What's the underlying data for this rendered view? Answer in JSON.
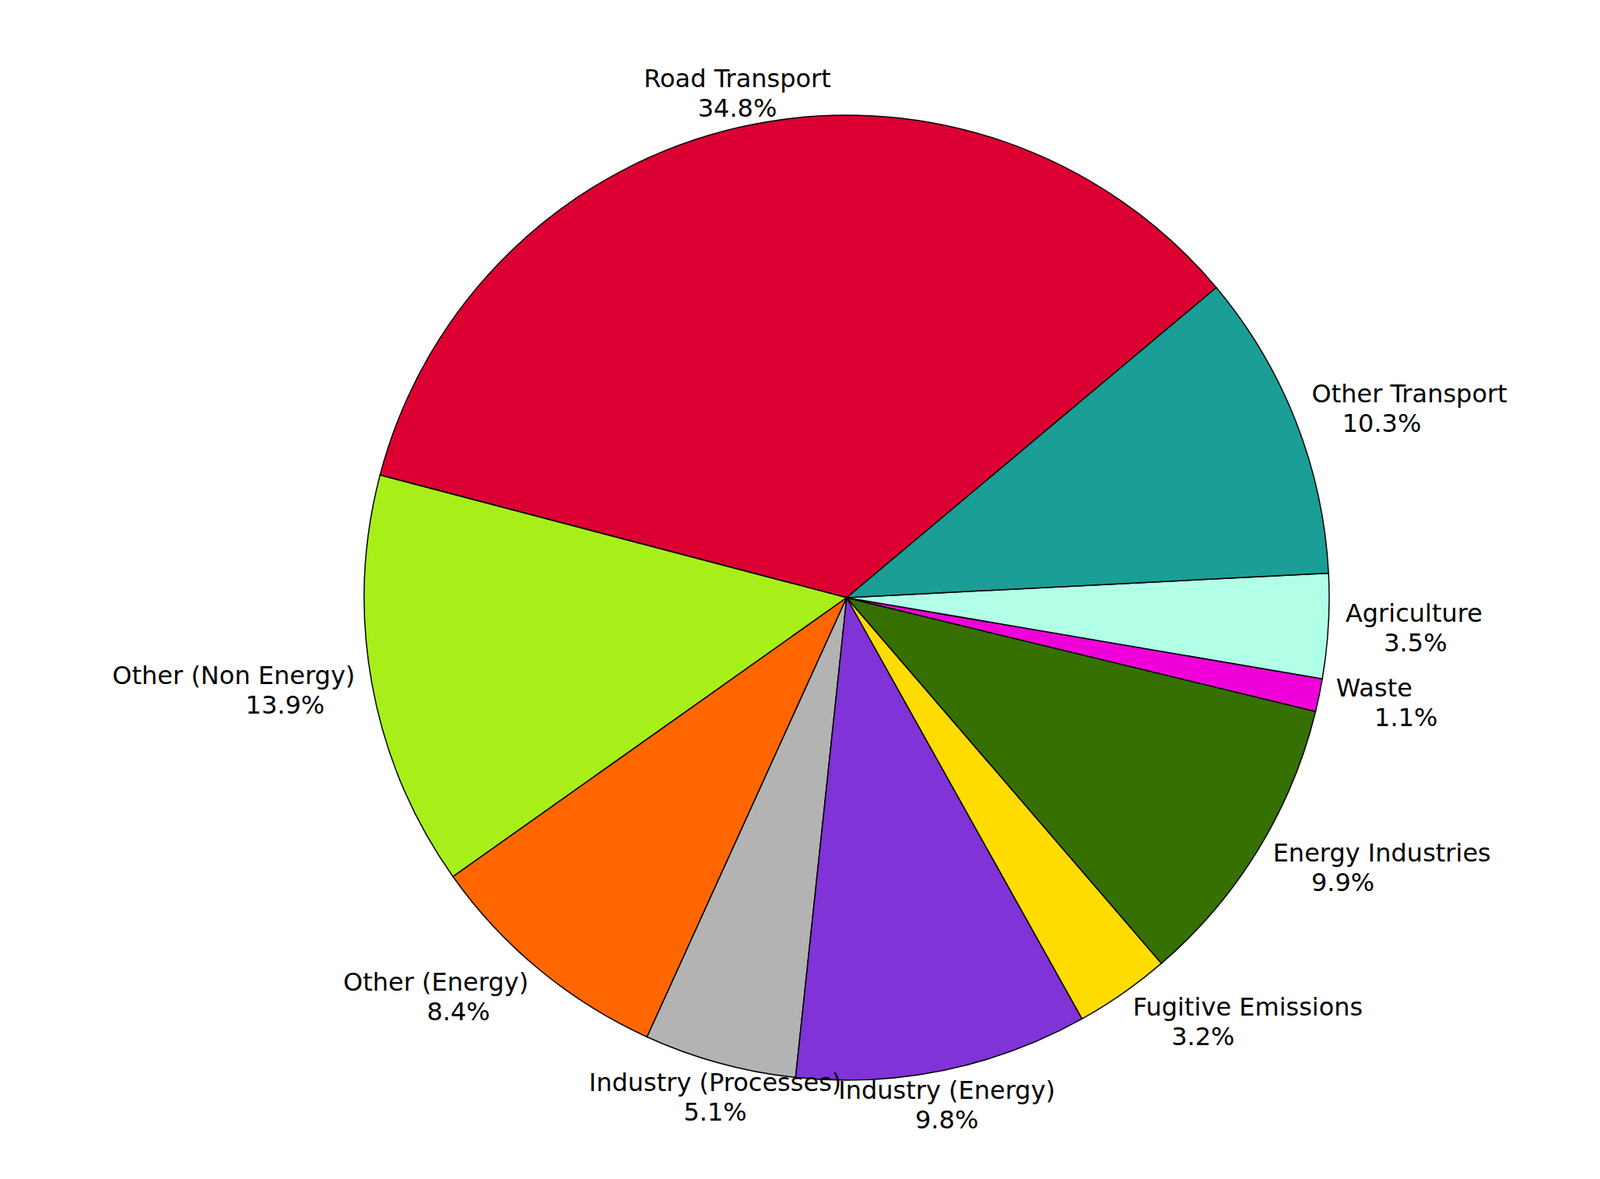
{
  "chart_data": {
    "type": "pie",
    "categories": [
      "Road Transport",
      "Other (Non Energy)",
      "Other (Energy)",
      "Industry (Processes)",
      "Industry (Energy)",
      "Fugitive Emissions",
      "Energy Industries",
      "Waste",
      "Agriculture",
      "Other Transport"
    ],
    "values": [
      34.8,
      13.9,
      8.4,
      5.1,
      9.8,
      3.2,
      9.9,
      1.1,
      3.5,
      10.3
    ],
    "value_labels": [
      "34.8%",
      "13.9%",
      "8.4%",
      "5.1%",
      "9.8%",
      "3.2%",
      "9.9%",
      "1.1%",
      "3.5%",
      "10.3%"
    ],
    "colors": [
      "#dc0032",
      "#a8ef19",
      "#ff6600",
      "#b3b3b3",
      "#8033d6",
      "#ffdc00",
      "#367000",
      "#f000d8",
      "#b2ffe8",
      "#1a9e96"
    ],
    "data_labels": true
  }
}
